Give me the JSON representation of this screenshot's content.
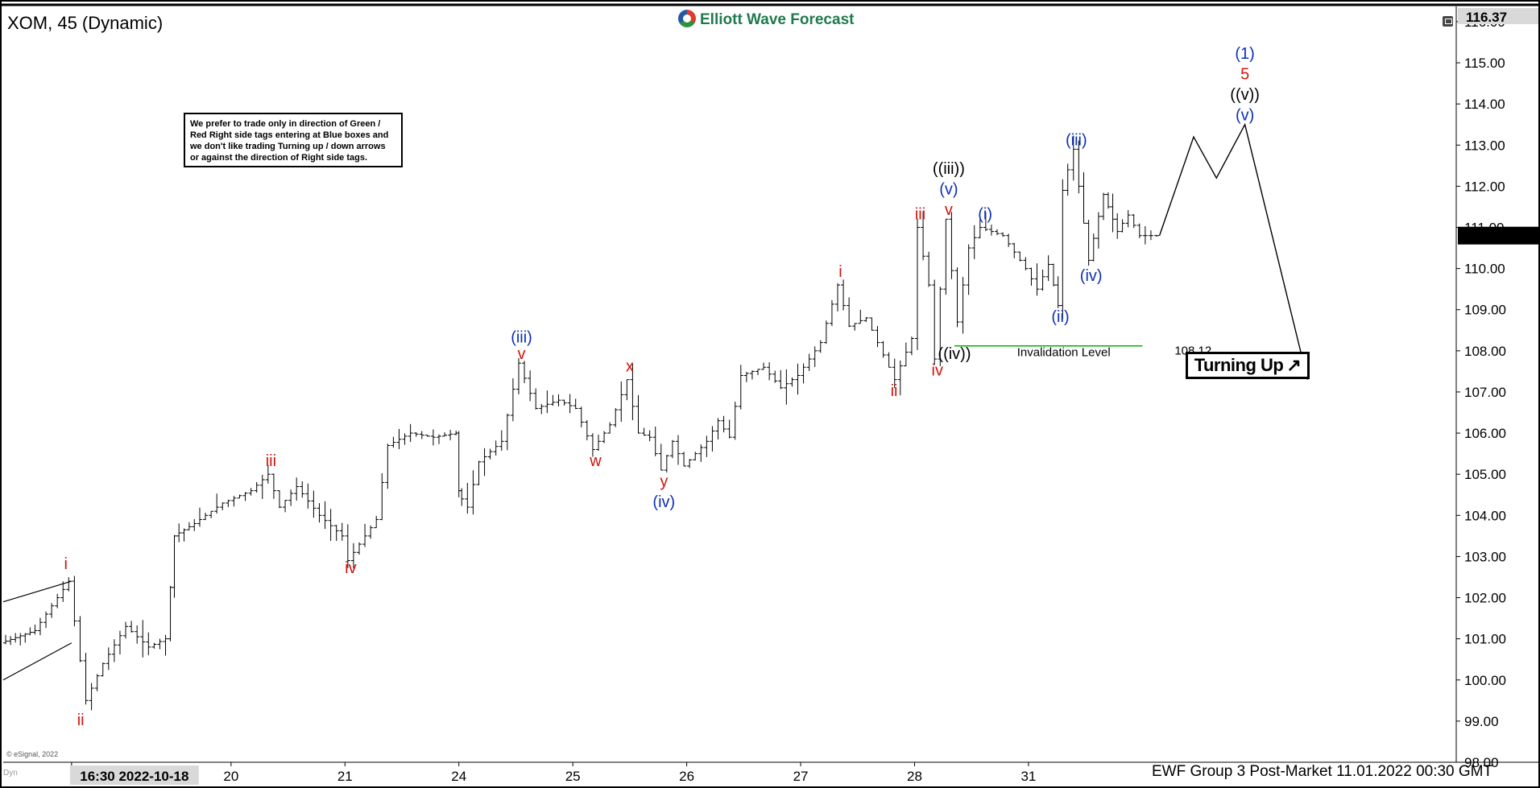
{
  "header": {
    "symbol_title": "XOM, 45 (Dynamic)",
    "brand": "Elliott Wave Forecast"
  },
  "note_text": "We prefer to trade only in direction of Green / Red Right side tags entering at Blue boxes and we don't like trading Turning up / down arrows or against the direction of Right side tags.",
  "footer": "EWF Group 3 Post-Market 11.01.2022 00:30 GMT",
  "copyright": "© eSignal, 2022",
  "badge": {
    "label": "Turning Up",
    "arrow": "↗"
  },
  "invalidation": {
    "label": "Invalidation Level",
    "value": "108.12"
  },
  "price_tags": {
    "top": "116.37",
    "last": "110.80"
  },
  "corner_label": "Dyn",
  "colors": {
    "red": "#d0160c",
    "blue": "#0d2fb8",
    "black": "#000000",
    "green": "#00b300",
    "brand": "#1f7a4d"
  },
  "icons": [
    "restore-icon",
    "elliott-wave-logo-icon",
    "turning-up-arrow-icon"
  ],
  "chart_data": {
    "type": "bar",
    "subtype": "ohlc-price-chart",
    "y_axis_ticks": [
      "98.00",
      "99.00",
      "100.00",
      "101.00",
      "102.00",
      "103.00",
      "104.00",
      "105.00",
      "106.00",
      "107.00",
      "108.00",
      "109.00",
      "110.00",
      "111.00",
      "112.00",
      "113.00",
      "114.00",
      "115.00",
      "116.00"
    ],
    "ylim": [
      98,
      116.37
    ],
    "x_axis_ticks": [
      {
        "label": "16:30 2022-10-18",
        "x": 0.6,
        "highlight": true
      },
      {
        "label": "20",
        "x": 2
      },
      {
        "label": "21",
        "x": 3
      },
      {
        "label": "24",
        "x": 4
      },
      {
        "label": "25",
        "x": 5
      },
      {
        "label": "26",
        "x": 6
      },
      {
        "label": "27",
        "x": 7
      },
      {
        "label": "28",
        "x": 8
      },
      {
        "label": "31",
        "x": 9
      }
    ],
    "xlim": [
      0,
      12.5
    ],
    "grid": false,
    "price_path": [
      [
        0.0,
        100.9
      ],
      [
        0.3,
        101.2
      ],
      [
        0.5,
        102.0
      ],
      [
        0.6,
        102.4
      ],
      [
        0.75,
        99.5
      ],
      [
        0.9,
        100.4
      ],
      [
        1.1,
        101.3
      ],
      [
        1.3,
        100.8
      ],
      [
        1.45,
        101.0
      ],
      [
        1.52,
        103.5
      ],
      [
        1.7,
        103.8
      ],
      [
        1.95,
        104.3
      ],
      [
        2.2,
        104.6
      ],
      [
        2.35,
        105.0
      ],
      [
        2.45,
        104.2
      ],
      [
        2.6,
        104.7
      ],
      [
        2.8,
        104.0
      ],
      [
        3.0,
        103.5
      ],
      [
        3.05,
        102.9
      ],
      [
        3.3,
        103.9
      ],
      [
        3.4,
        105.7
      ],
      [
        3.6,
        106.0
      ],
      [
        3.8,
        105.9
      ],
      [
        4.0,
        106.0
      ],
      [
        4.0,
        104.6
      ],
      [
        4.1,
        104.2
      ],
      [
        4.2,
        105.3
      ],
      [
        4.4,
        105.8
      ],
      [
        4.55,
        107.7
      ],
      [
        4.7,
        106.6
      ],
      [
        4.9,
        106.8
      ],
      [
        5.05,
        106.6
      ],
      [
        5.2,
        105.6
      ],
      [
        5.35,
        106.2
      ],
      [
        5.5,
        107.3
      ],
      [
        5.6,
        106.0
      ],
      [
        5.7,
        105.9
      ],
      [
        5.8,
        105.1
      ],
      [
        5.9,
        105.8
      ],
      [
        6.0,
        105.2
      ],
      [
        6.2,
        105.8
      ],
      [
        6.3,
        106.3
      ],
      [
        6.4,
        105.9
      ],
      [
        6.5,
        107.4
      ],
      [
        6.7,
        107.6
      ],
      [
        6.85,
        107.1
      ],
      [
        7.0,
        107.4
      ],
      [
        7.2,
        108.2
      ],
      [
        7.35,
        109.6
      ],
      [
        7.45,
        108.6
      ],
      [
        7.6,
        108.8
      ],
      [
        7.75,
        107.9
      ],
      [
        7.85,
        107.3
      ],
      [
        8.0,
        108.3
      ],
      [
        8.05,
        111.0
      ],
      [
        8.15,
        109.6
      ],
      [
        8.2,
        107.8
      ],
      [
        8.3,
        111.2
      ],
      [
        8.4,
        108.7
      ],
      [
        8.5,
        110.5
      ],
      [
        8.6,
        111.0
      ],
      [
        8.8,
        110.8
      ],
      [
        9.0,
        110.0
      ],
      [
        9.1,
        109.5
      ],
      [
        9.2,
        110.1
      ],
      [
        9.28,
        109.1
      ],
      [
        9.32,
        111.9
      ],
      [
        9.42,
        112.9
      ],
      [
        9.55,
        110.2
      ],
      [
        9.68,
        111.8
      ],
      [
        9.8,
        110.9
      ],
      [
        9.9,
        111.3
      ],
      [
        10.0,
        110.8
      ],
      [
        10.15,
        110.8
      ]
    ],
    "projection_path": [
      [
        10.15,
        110.8
      ],
      [
        10.45,
        113.2
      ],
      [
        10.65,
        112.2
      ],
      [
        10.9,
        113.5
      ],
      [
        11.45,
        107.3
      ]
    ],
    "invalidation_level": 108.12,
    "wave_labels": [
      {
        "text": "i",
        "x": 0.55,
        "y": 102.7,
        "color": "red"
      },
      {
        "text": "ii",
        "x": 0.68,
        "y": 98.9,
        "color": "red"
      },
      {
        "text": "iii",
        "x": 2.35,
        "y": 105.2,
        "color": "red"
      },
      {
        "text": "iv",
        "x": 3.05,
        "y": 102.6,
        "color": "red"
      },
      {
        "text": "(iii)",
        "x": 4.55,
        "y": 108.2,
        "color": "blue"
      },
      {
        "text": "v",
        "x": 4.55,
        "y": 107.8,
        "color": "red"
      },
      {
        "text": "w",
        "x": 5.2,
        "y": 105.2,
        "color": "red"
      },
      {
        "text": "x",
        "x": 5.5,
        "y": 107.5,
        "color": "red"
      },
      {
        "text": "y",
        "x": 5.8,
        "y": 104.7,
        "color": "red"
      },
      {
        "text": "(iv)",
        "x": 5.8,
        "y": 104.2,
        "color": "blue"
      },
      {
        "text": "i",
        "x": 7.35,
        "y": 109.8,
        "color": "red"
      },
      {
        "text": "ii",
        "x": 7.82,
        "y": 106.9,
        "color": "red"
      },
      {
        "text": "iii",
        "x": 8.05,
        "y": 111.2,
        "color": "red"
      },
      {
        "text": "iv",
        "x": 8.2,
        "y": 107.4,
        "color": "red"
      },
      {
        "text": "v",
        "x": 8.3,
        "y": 111.3,
        "color": "red"
      },
      {
        "text": "(v)",
        "x": 8.3,
        "y": 111.8,
        "color": "blue"
      },
      {
        "text": "((iii))",
        "x": 8.3,
        "y": 112.3,
        "color": "black"
      },
      {
        "text": "((iv))",
        "x": 8.35,
        "y": 107.8,
        "color": "black"
      },
      {
        "text": "(i)",
        "x": 8.62,
        "y": 111.2,
        "color": "blue"
      },
      {
        "text": "(ii)",
        "x": 9.28,
        "y": 108.7,
        "color": "blue"
      },
      {
        "text": "(iii)",
        "x": 9.42,
        "y": 113.0,
        "color": "blue"
      },
      {
        "text": "(iv)",
        "x": 9.55,
        "y": 109.7,
        "color": "blue"
      },
      {
        "text": "(v)",
        "x": 10.9,
        "y": 113.6,
        "color": "blue"
      },
      {
        "text": "((v))",
        "x": 10.9,
        "y": 114.1,
        "color": "black"
      },
      {
        "text": "5",
        "x": 10.9,
        "y": 114.6,
        "color": "red"
      },
      {
        "text": "(1)",
        "x": 10.9,
        "y": 115.1,
        "color": "blue"
      }
    ]
  }
}
